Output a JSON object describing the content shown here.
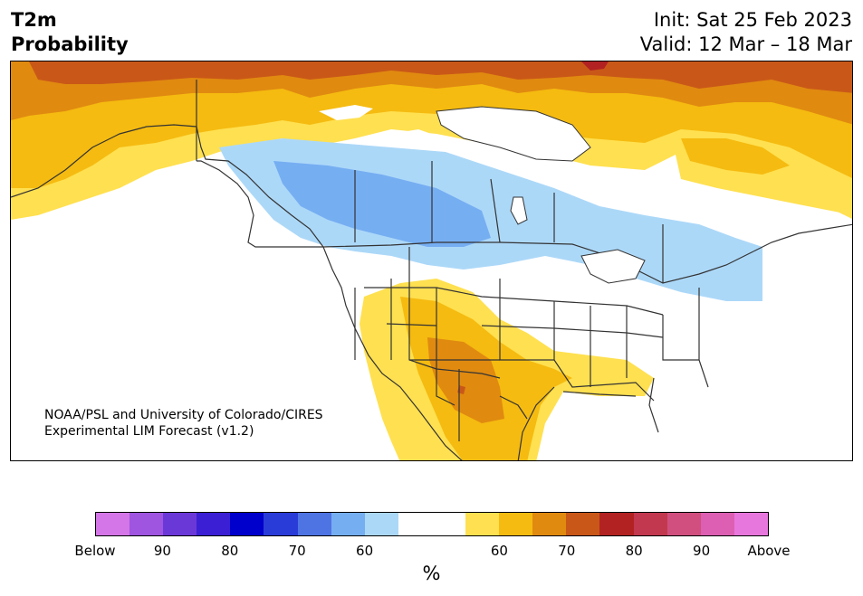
{
  "title": {
    "line1": "T2m",
    "line2": "Probability"
  },
  "info": {
    "init": "Init: Sat 25 Feb 2023",
    "valid": "Valid: 12 Mar – 18 Mar"
  },
  "credit": {
    "line1": "NOAA/PSL and University of Colorado/CIRES",
    "line2": "Experimental LIM Forecast (v1.2)"
  },
  "colorbar": {
    "unit": "%",
    "colors": [
      "#d576e8",
      "#9f55e0",
      "#6b38d8",
      "#3a1fd4",
      "#0000cc",
      "#2a3cd8",
      "#4e74e4",
      "#76aef2",
      "#acd8f8",
      "#ffffff",
      "#ffffff",
      "#ffe050",
      "#f5bb10",
      "#e08a10",
      "#c95818",
      "#b22222",
      "#c2384f",
      "#d04f7f",
      "#dc5fb3",
      "#e877dd"
    ],
    "tick_labels": [
      "Below",
      "90",
      "80",
      "70",
      "60",
      "60",
      "70",
      "80",
      "90",
      "Above"
    ]
  },
  "map_colors": {
    "above_60": "#ffe050",
    "above_70": "#f5bb10",
    "above_80": "#e08a10",
    "above_90": "#c95818",
    "above_max": "#b22222",
    "below_60": "#acd8f8",
    "below_70": "#76aef2",
    "outline": "#333333"
  }
}
